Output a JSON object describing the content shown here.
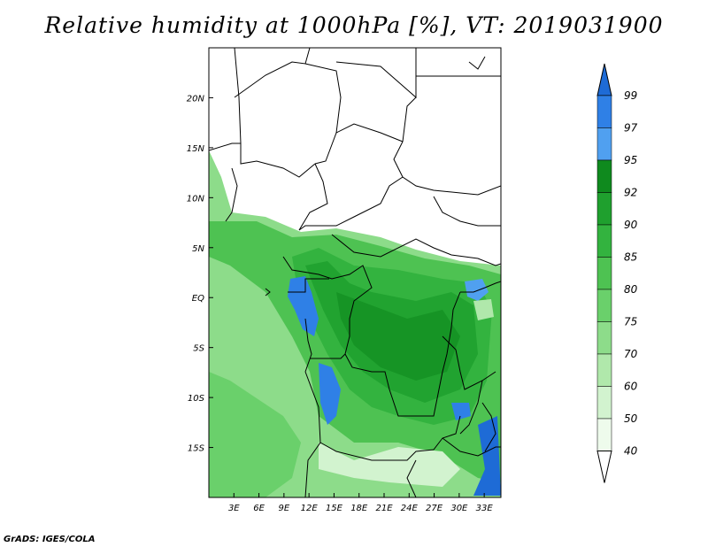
{
  "title": "Relative humidity at 1000hPa [%], VT: 2019031900",
  "credit": "GrADS: IGES/COLA",
  "map": {
    "lon_range": [
      0,
      35
    ],
    "lat_range": [
      -20,
      25
    ],
    "lon_ticks": [
      "3E",
      "6E",
      "9E",
      "12E",
      "15E",
      "18E",
      "21E",
      "24E",
      "27E",
      "30E",
      "33E"
    ],
    "lon_tick_values": [
      3,
      6,
      9,
      12,
      15,
      18,
      21,
      24,
      27,
      30,
      33
    ],
    "lat_ticks": [
      "20N",
      "15N",
      "10N",
      "5N",
      "EQ",
      "5S",
      "10S",
      "15S"
    ],
    "lat_tick_values": [
      20,
      15,
      10,
      5,
      0,
      -5,
      -10,
      -15
    ]
  },
  "colorbar": {
    "levels": [
      "99",
      "97",
      "95",
      "92",
      "90",
      "85",
      "80",
      "75",
      "70",
      "60",
      "50",
      "40"
    ],
    "colors": [
      "#1e6bd6",
      "#2f80e6",
      "#50a0f0",
      "#0f8a1e",
      "#1fa02e",
      "#33b33f",
      "#4ec252",
      "#6ad06b",
      "#8ddc8a",
      "#b0e8ab",
      "#d2f3cf",
      "#eefbec"
    ]
  }
}
